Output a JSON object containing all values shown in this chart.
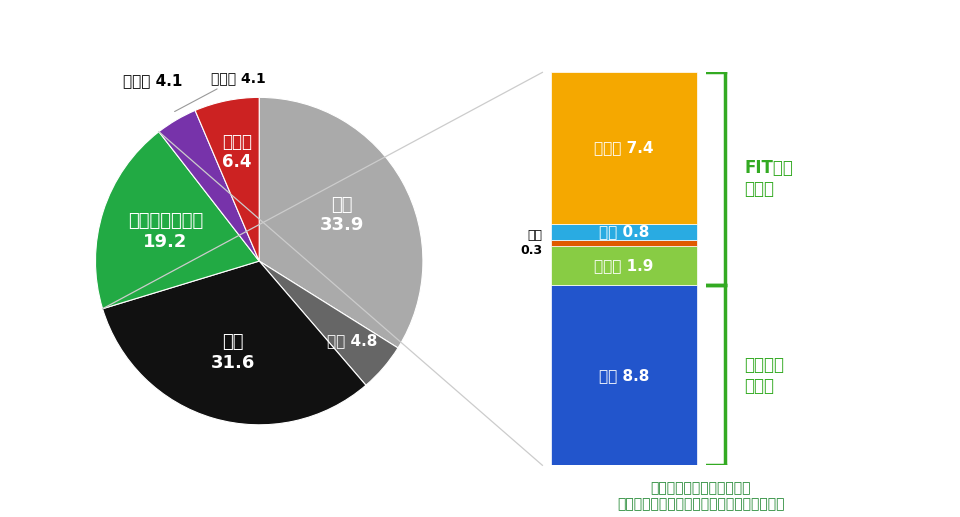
{
  "pie_order": [
    "ガス",
    "石油 4.8",
    "石炭\n31.6",
    "自然エネルギー\n19.2",
    "その他 4.1",
    "原子力\n6.4"
  ],
  "pie_values": [
    33.9,
    4.8,
    31.6,
    19.2,
    4.1,
    6.4
  ],
  "pie_colors": [
    "#aaaaaa",
    "#666666",
    "#111111",
    "#22aa44",
    "#7733aa",
    "#cc2222"
  ],
  "pie_startangle": 90,
  "pie_counterclock": false,
  "pie_label_texts": [
    "ガス\n33.9",
    "石油 4.8",
    "石炭\n31.6",
    "自然エネルギー\n19.2",
    "その他 4.1",
    "原子力\n6.4"
  ],
  "pie_label_radii": [
    0.58,
    0.75,
    0.58,
    0.6,
    1.28,
    0.68
  ],
  "pie_label_colors": [
    "white",
    "white",
    "white",
    "white",
    "black",
    "white"
  ],
  "pie_label_fontsizes": [
    13,
    11,
    13,
    13,
    11,
    12
  ],
  "bar_bottom_to_top": [
    "水力 8.8",
    "バイオ 1.9",
    "地熱",
    "風力 0.8",
    "太陽光 7.4"
  ],
  "bar_values_bottom_to_top": [
    8.8,
    1.9,
    0.3,
    0.8,
    7.4
  ],
  "bar_colors_bottom_to_top": [
    "#2255cc",
    "#88cc44",
    "#e05a00",
    "#29abe2",
    "#f5a800"
  ],
  "bar_text_colors": [
    "white",
    "white",
    "black",
    "white",
    "white"
  ],
  "bar_in_labels": [
    "水力 8.8",
    "バイオ 1.9",
    "",
    "風力 0.8",
    "太陽光 7.4"
  ],
  "chinetsu_label": "地熱\n0.3",
  "fit_label": "FIT電源\nが主体",
  "large_water_label": "大型水力\nが主体",
  "bracket_color": "#33aa22",
  "source_line1": "出典：自然エネルギー財団",
  "source_line2": "（資源エネルギー庁のデータをもとに作成）",
  "source_color": "#228833",
  "background_color": "#ffffff",
  "line_color": "#cccccc",
  "sono_hoka_line_color": "#999999"
}
